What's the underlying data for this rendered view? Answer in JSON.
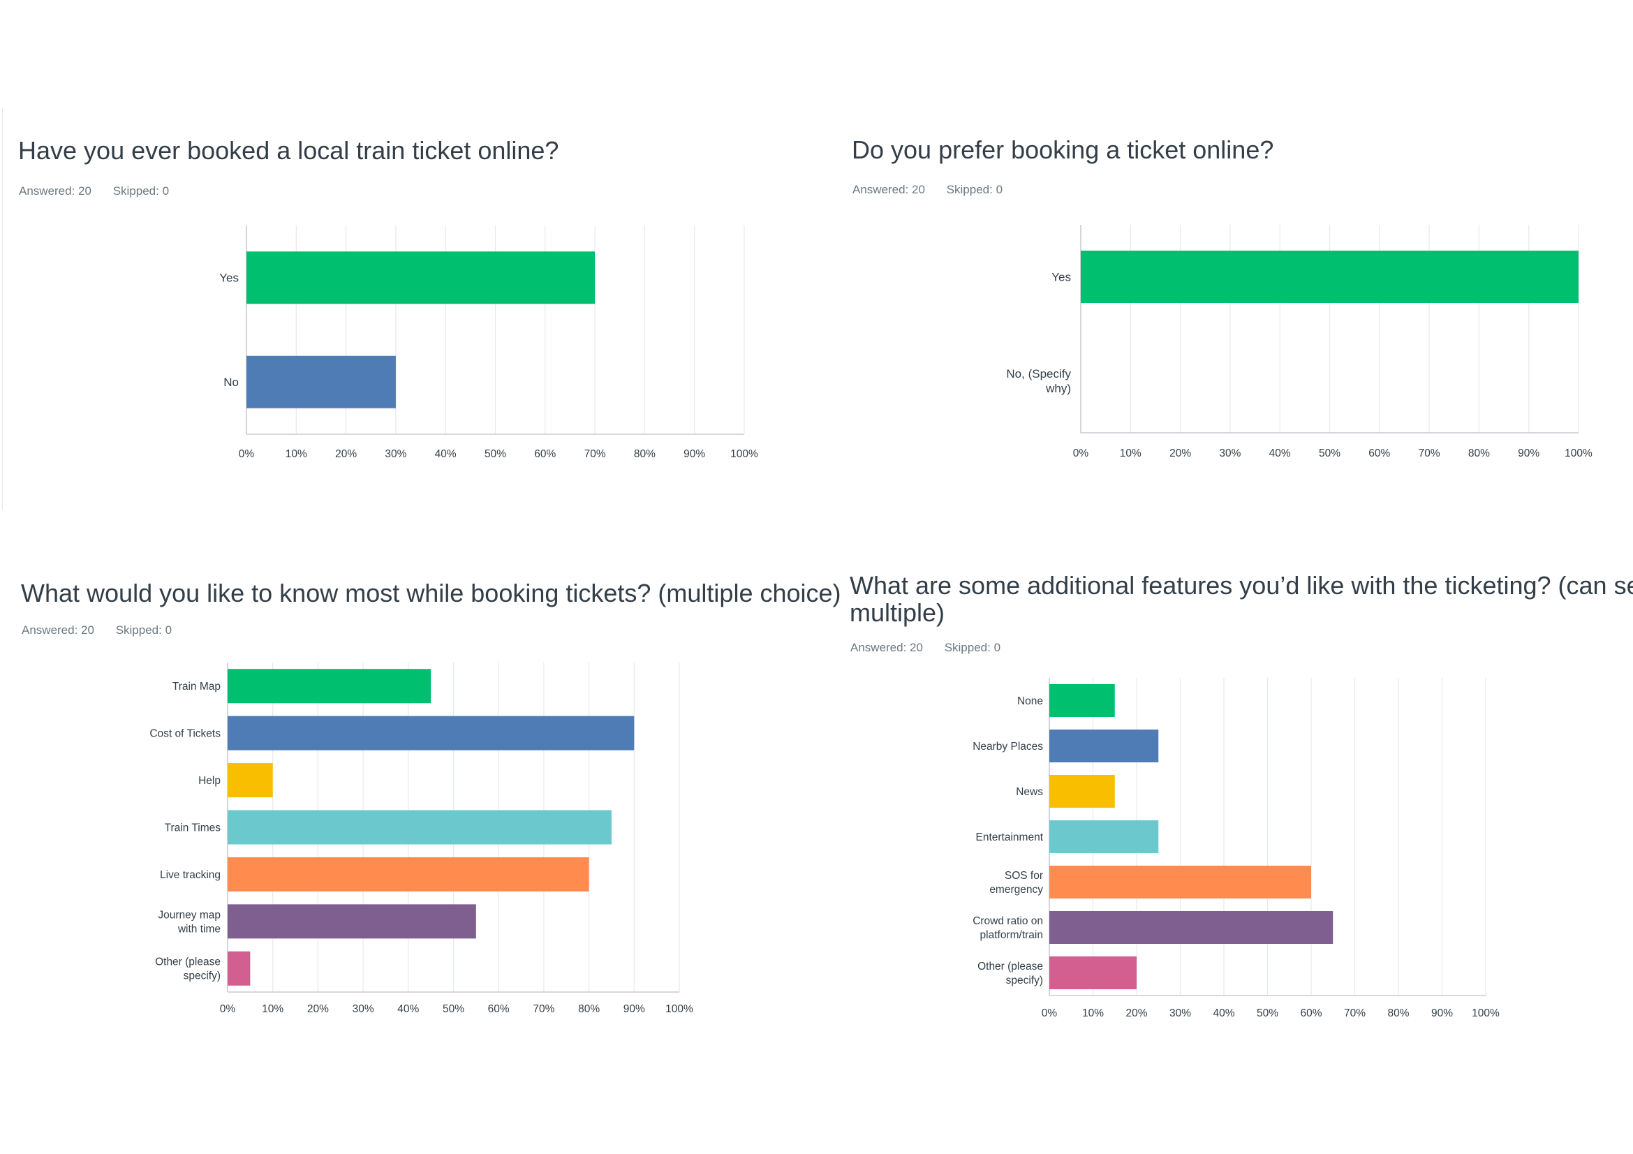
{
  "charts": [
    {
      "title": "Have you ever booked a local train ticket online?",
      "answered": "Answered: 20",
      "skipped": "Skipped: 0"
    },
    {
      "title": "Do you prefer booking a ticket online?",
      "answered": "Answered: 20",
      "skipped": "Skipped: 0"
    },
    {
      "title": "What would you like to know most while booking tickets? (multiple choice)",
      "answered": "Answered: 20",
      "skipped": "Skipped: 0"
    },
    {
      "title_line1": "What are some additional features you’d like with the ticketing? (can select",
      "title_line2": "multiple)",
      "answered": "Answered: 20",
      "skipped": "Skipped: 0"
    }
  ],
  "colors": [
    "#00bf6f",
    "#507cb6",
    "#f9be00",
    "#6bc8cd",
    "#ff8b4f",
    "#7f5f90",
    "#d25f90"
  ],
  "chart_data": [
    {
      "type": "bar",
      "orientation": "horizontal",
      "categories": [
        "Yes",
        "No"
      ],
      "values": [
        70,
        30
      ],
      "xlim": [
        0,
        100
      ],
      "xticks": [
        "0%",
        "10%",
        "20%",
        "30%",
        "40%",
        "50%",
        "60%",
        "70%",
        "80%",
        "90%",
        "100%"
      ],
      "grid": true
    },
    {
      "type": "bar",
      "orientation": "horizontal",
      "categories": [
        "Yes",
        "No, (Specify why)"
      ],
      "values": [
        100,
        0
      ],
      "xlim": [
        0,
        100
      ],
      "xticks": [
        "0%",
        "10%",
        "20%",
        "30%",
        "40%",
        "50%",
        "60%",
        "70%",
        "80%",
        "90%",
        "100%"
      ],
      "grid": true
    },
    {
      "type": "bar",
      "orientation": "horizontal",
      "categories": [
        "Train Map",
        "Cost of Tickets",
        "Help",
        "Train Times",
        "Live tracking",
        "Journey map with time",
        "Other (please specify)"
      ],
      "values": [
        45,
        90,
        10,
        85,
        80,
        55,
        5
      ],
      "xlim": [
        0,
        100
      ],
      "xticks": [
        "0%",
        "10%",
        "20%",
        "30%",
        "40%",
        "50%",
        "60%",
        "70%",
        "80%",
        "90%",
        "100%"
      ],
      "grid": true
    },
    {
      "type": "bar",
      "orientation": "horizontal",
      "categories": [
        "None",
        "Nearby Places",
        "News",
        "Entertainment",
        "SOS for emergency",
        "Crowd ratio on platform/train",
        "Other (please specify)"
      ],
      "values": [
        15,
        25,
        15,
        25,
        60,
        65,
        20
      ],
      "xlim": [
        0,
        100
      ],
      "xticks": [
        "0%",
        "10%",
        "20%",
        "30%",
        "40%",
        "50%",
        "60%",
        "70%",
        "80%",
        "90%",
        "100%"
      ],
      "grid": true
    }
  ]
}
